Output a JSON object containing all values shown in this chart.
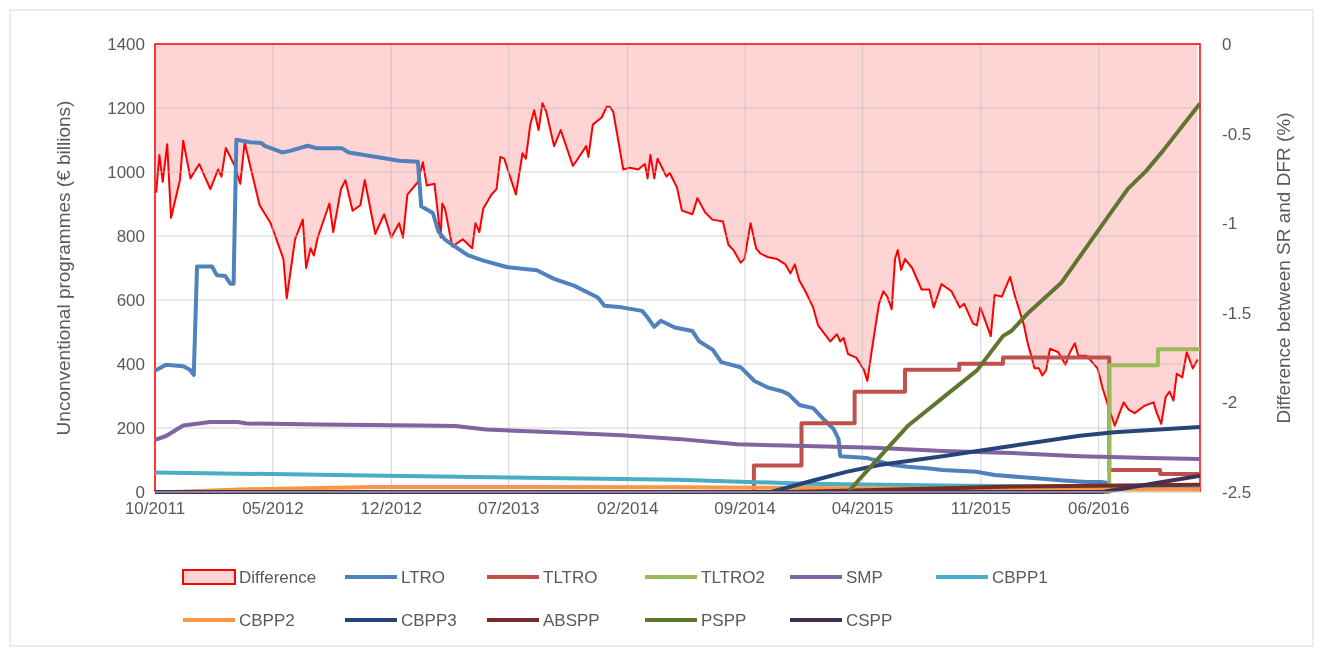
{
  "chart_data": {
    "type": "line",
    "xlabel": null,
    "ylabel": "Unconventional programmes (€ billions)",
    "y2label": "Difference between SR and DFR (%)",
    "xlim": [
      "2011-10-01",
      "2016-12-01"
    ],
    "xticks": [
      {
        "value": "2011-10-01",
        "label": "10/2011"
      },
      {
        "value": "2012-05-01",
        "label": "05/2012"
      },
      {
        "value": "2012-12-01",
        "label": "12/2012"
      },
      {
        "value": "2013-07-01",
        "label": "07/2013"
      },
      {
        "value": "2014-02-01",
        "label": "02/2014"
      },
      {
        "value": "2014-09-01",
        "label": "09/2014"
      },
      {
        "value": "2015-04-01",
        "label": "04/2015"
      },
      {
        "value": "2015-11-01",
        "label": "11/2015"
      },
      {
        "value": "2016-06-01",
        "label": "06/2016"
      }
    ],
    "ylim": [
      0,
      1400
    ],
    "yticks": [
      0,
      200,
      400,
      600,
      800,
      1000,
      1200,
      1400
    ],
    "y2lim": [
      -2.5,
      0
    ],
    "y2ticks": [
      -2.5,
      -2,
      -1.5,
      -1,
      -0.5,
      0
    ],
    "grid": true,
    "legend": "bottom",
    "series": [
      {
        "name": "Difference",
        "type": "area",
        "axis": "y2",
        "color": "#ff0000",
        "x": [
          "2011-10-03",
          "2011-10-09",
          "2011-10-15",
          "2011-10-23",
          "2011-10-30",
          "2011-11-15",
          "2011-11-21",
          "2011-12-04",
          "2011-12-20",
          "2012-01-09",
          "2012-01-23",
          "2012-01-29",
          "2012-02-06",
          "2012-02-22",
          "2012-03-03",
          "2012-03-11",
          "2012-04-07",
          "2012-04-27",
          "2012-05-20",
          "2012-05-26",
          "2012-06-10",
          "2012-06-24",
          "2012-06-30",
          "2012-07-08",
          "2012-07-14",
          "2012-07-21",
          "2012-08-11",
          "2012-08-18",
          "2012-09-01",
          "2012-09-09",
          "2012-09-22",
          "2012-10-06",
          "2012-10-14",
          "2012-11-02",
          "2012-11-18",
          "2012-12-01",
          "2012-12-15",
          "2012-12-22",
          "2012-12-30",
          "2013-01-18",
          "2013-01-27",
          "2013-02-03",
          "2013-02-17",
          "2013-02-28",
          "2013-03-03",
          "2013-03-08",
          "2013-03-21",
          "2013-04-09",
          "2013-04-26",
          "2013-05-02",
          "2013-05-09",
          "2013-05-16",
          "2013-05-31",
          "2013-06-09",
          "2013-06-16",
          "2013-06-23",
          "2013-07-14",
          "2013-07-26",
          "2013-08-01",
          "2013-08-09",
          "2013-08-16",
          "2013-08-24",
          "2013-08-31",
          "2013-09-07",
          "2013-09-21",
          "2013-10-03",
          "2013-10-25",
          "2013-11-01",
          "2013-11-18",
          "2013-11-22",
          "2013-11-30",
          "2013-12-16",
          "2013-12-25",
          "2013-12-31",
          "2014-01-06",
          "2014-01-24",
          "2014-02-05",
          "2014-02-20",
          "2014-03-04",
          "2014-03-09",
          "2014-03-14",
          "2014-03-21",
          "2014-03-27",
          "2014-04-12",
          "2014-04-18",
          "2014-05-01",
          "2014-05-10",
          "2014-05-29",
          "2014-06-07",
          "2014-06-21",
          "2014-07-04",
          "2014-07-23",
          "2014-08-02",
          "2014-08-11",
          "2014-08-24",
          "2014-08-31",
          "2014-09-11",
          "2014-09-21",
          "2014-09-29",
          "2014-10-13",
          "2014-10-29",
          "2014-11-13",
          "2014-11-22",
          "2014-11-30",
          "2014-12-08",
          "2014-12-19",
          "2015-01-02",
          "2015-01-11",
          "2015-02-02",
          "2015-02-14",
          "2015-02-20",
          "2015-02-26",
          "2015-03-06",
          "2015-03-21",
          "2015-04-04",
          "2015-04-10",
          "2015-04-18",
          "2015-05-01",
          "2015-05-09",
          "2015-05-16",
          "2015-05-24",
          "2015-05-30",
          "2015-06-04",
          "2015-06-10",
          "2015-06-17",
          "2015-06-30",
          "2015-07-17",
          "2015-07-31",
          "2015-08-08",
          "2015-08-22",
          "2015-09-09",
          "2015-09-24",
          "2015-10-02",
          "2015-10-18",
          "2015-10-25",
          "2015-10-31",
          "2015-11-05",
          "2015-11-19",
          "2015-11-26",
          "2015-12-09",
          "2015-12-24",
          "2016-01-01",
          "2016-01-18",
          "2016-01-24",
          "2016-02-06",
          "2016-02-14",
          "2016-02-20",
          "2016-02-27",
          "2016-03-05",
          "2016-03-20",
          "2016-04-02",
          "2016-04-10",
          "2016-04-19",
          "2016-04-25",
          "2016-05-10",
          "2016-05-30",
          "2016-06-08",
          "2016-06-19",
          "2016-06-30",
          "2016-07-16",
          "2016-07-25",
          "2016-08-05",
          "2016-08-22",
          "2016-09-08",
          "2016-09-14",
          "2016-09-22",
          "2016-09-30",
          "2016-10-07",
          "2016-10-14",
          "2016-10-20",
          "2016-10-30",
          "2016-11-07",
          "2016-11-18",
          "2016-11-27"
        ],
        "values": [
          -0.83,
          -0.62,
          -0.77,
          -0.56,
          -0.97,
          -0.76,
          -0.54,
          -0.75,
          -0.67,
          -0.81,
          -0.7,
          -0.74,
          -0.58,
          -0.68,
          -0.78,
          -0.55,
          -0.9,
          -1,
          -1.2,
          -1.42,
          -1.09,
          -0.98,
          -1.25,
          -1.14,
          -1.18,
          -1.08,
          -0.89,
          -1.05,
          -0.81,
          -0.76,
          -0.93,
          -0.9,
          -0.76,
          -1.06,
          -0.95,
          -1.08,
          -1,
          -1.08,
          -0.84,
          -0.77,
          -0.66,
          -0.79,
          -0.78,
          -1.08,
          -0.89,
          -0.92,
          -1.13,
          -1.09,
          -1.14,
          -1,
          -1.05,
          -0.92,
          -0.84,
          -0.81,
          -0.63,
          -0.64,
          -0.84,
          -0.61,
          -0.64,
          -0.45,
          -0.37,
          -0.48,
          -0.33,
          -0.38,
          -0.57,
          -0.48,
          -0.68,
          -0.65,
          -0.57,
          -0.63,
          -0.45,
          -0.41,
          -0.35,
          -0.35,
          -0.38,
          -0.7,
          -0.69,
          -0.7,
          -0.67,
          -0.75,
          -0.62,
          -0.75,
          -0.64,
          -0.74,
          -0.72,
          -0.8,
          -0.93,
          -0.95,
          -0.86,
          -0.94,
          -0.98,
          -0.99,
          -1.12,
          -1.15,
          -1.22,
          -1.2,
          -1,
          -1.14,
          -1.17,
          -1.19,
          -1.2,
          -1.23,
          -1.28,
          -1.23,
          -1.32,
          -1.38,
          -1.47,
          -1.57,
          -1.66,
          -1.62,
          -1.66,
          -1.64,
          -1.73,
          -1.75,
          -1.82,
          -1.88,
          -1.71,
          -1.45,
          -1.38,
          -1.41,
          -1.48,
          -1.2,
          -1.15,
          -1.26,
          -1.2,
          -1.25,
          -1.37,
          -1.37,
          -1.47,
          -1.34,
          -1.38,
          -1.47,
          -1.45,
          -1.56,
          -1.57,
          -1.47,
          -1.51,
          -1.63,
          -1.4,
          -1.41,
          -1.3,
          -1.4,
          -1.57,
          -1.66,
          -1.81,
          -1.81,
          -1.85,
          -1.82,
          -1.7,
          -1.72,
          -1.79,
          -1.72,
          -1.67,
          -1.74,
          -1.74,
          -1.81,
          -1.92,
          -2.03,
          -2.13,
          -2,
          -2.04,
          -2.06,
          -2.02,
          -2,
          -2.06,
          -2.12,
          -1.97,
          -1.94,
          -1.99,
          -1.84,
          -1.86,
          -1.72,
          -1.81,
          -1.76
        ]
      },
      {
        "name": "LTRO",
        "color": "#4f81bd",
        "x": [
          "2011-10-01",
          "2011-10-21",
          "2011-11-21",
          "2011-12-03",
          "2011-12-10",
          "2011-12-16",
          "2012-01-12",
          "2012-01-21",
          "2012-02-05",
          "2012-02-14",
          "2012-02-20",
          "2012-02-25",
          "2012-03-21",
          "2012-04-10",
          "2012-04-16",
          "2012-05-18",
          "2012-06-01",
          "2012-07-03",
          "2012-07-20",
          "2012-09-03",
          "2012-09-15",
          "2012-10-21",
          "2012-11-21",
          "2012-12-15",
          "2013-01-18",
          "2013-01-24",
          "2013-02-14",
          "2013-02-24",
          "2013-03-09",
          "2013-04-18",
          "2013-05-15",
          "2013-06-27",
          "2013-08-21",
          "2013-09-21",
          "2013-10-27",
          "2013-12-09",
          "2013-12-21",
          "2014-01-21",
          "2014-02-27",
          "2014-03-09",
          "2014-03-21",
          "2014-04-02",
          "2014-04-27",
          "2014-05-29",
          "2014-06-10",
          "2014-07-05",
          "2014-07-20",
          "2014-08-24",
          "2014-09-18",
          "2014-10-13",
          "2014-11-07",
          "2014-11-19",
          "2014-12-08",
          "2015-01-02",
          "2015-01-20",
          "2015-02-08",
          "2015-02-17",
          "2015-02-20",
          "2015-04-10",
          "2015-05-04",
          "2015-05-23",
          "2015-06-22",
          "2015-07-27",
          "2015-08-24",
          "2015-10-24",
          "2015-11-26",
          "2016-02-15",
          "2016-03-29",
          "2016-05-11",
          "2016-06-05",
          "2016-06-18"
        ],
        "values": [
          379,
          398,
          393,
          382,
          366,
          705,
          705,
          677,
          675,
          651,
          651,
          1101,
          1093,
          1091,
          1082,
          1061,
          1066,
          1082,
          1074,
          1074,
          1061,
          1051,
          1042,
          1035,
          1032,
          893,
          872,
          814,
          787,
          740,
          724,
          703,
          693,
          666,
          645,
          608,
          582,
          577,
          566,
          545,
          516,
          535,
          514,
          503,
          471,
          444,
          406,
          390,
          347,
          326,
          315,
          305,
          272,
          262,
          229,
          197,
          165,
          112,
          106,
          95,
          85,
          79,
          74,
          69,
          63,
          53,
          42,
          36,
          31,
          31,
          28
        ]
      },
      {
        "name": "TLTRO",
        "type": "step",
        "color": "#c0504d",
        "x": [
          "2014-09-12",
          "2014-09-17",
          "2014-12-12",
          "2015-03-18",
          "2015-06-17",
          "2015-09-23",
          "2015-12-11",
          "2016-06-20",
          "2016-09-20",
          "2016-12-01"
        ],
        "values": [
          0,
          83,
          215,
          313,
          382,
          401,
          420,
          69,
          56,
          56
        ]
      },
      {
        "name": "TLTRO2",
        "type": "step",
        "color": "#9bbb59",
        "x": [
          "2016-06-15",
          "2016-06-20",
          "2016-09-16",
          "2016-12-01"
        ],
        "values": [
          0,
          396,
          446,
          446
        ]
      },
      {
        "name": "SMP",
        "color": "#8064a2",
        "x": [
          "2011-10-01",
          "2011-10-21",
          "2011-11-21",
          "2012-01-09",
          "2012-02-27",
          "2012-03-15",
          "2012-07-21",
          "2013-01-21",
          "2013-03-27",
          "2013-05-21",
          "2013-09-21",
          "2014-01-21",
          "2014-05-02",
          "2014-08-18",
          "2014-12-20",
          "2015-04-22",
          "2015-08-24",
          "2015-12-27",
          "2016-04-28",
          "2016-09-01",
          "2016-12-01"
        ],
        "values": [
          163,
          175,
          208,
          219,
          219,
          214,
          211,
          208,
          206,
          195,
          187,
          177,
          166,
          149,
          144,
          138,
          128,
          122,
          112,
          106,
          103
        ]
      },
      {
        "name": "CBPP1",
        "color": "#4bacc6",
        "x": [
          "2011-10-01",
          "2012-11-21",
          "2014-05-02",
          "2014-12-20",
          "2015-08-24",
          "2016-06-01",
          "2016-12-01"
        ],
        "values": [
          61,
          51,
          38,
          26,
          20,
          15,
          10
        ]
      },
      {
        "name": "CBPP2",
        "color": "#f79646",
        "x": [
          "2011-11-01",
          "2012-03-01",
          "2012-11-01",
          "2014-05-01",
          "2015-06-01",
          "2016-12-01"
        ],
        "values": [
          0,
          8,
          16,
          15,
          11,
          7
        ]
      },
      {
        "name": "CBPP3",
        "color": "#264478",
        "x": [
          "2014-10-18",
          "2015-01-02",
          "2015-03-03",
          "2015-05-04",
          "2015-08-24",
          "2015-12-26",
          "2016-04-28",
          "2016-06-29",
          "2016-12-01"
        ],
        "values": [
          0,
          36,
          63,
          85,
          112,
          144,
          176,
          187,
          203
        ]
      },
      {
        "name": "ABSPP",
        "color": "#772c2a",
        "x": [
          "2014-11-21",
          "2015-06-01",
          "2016-01-01",
          "2016-12-01"
        ],
        "values": [
          0,
          8,
          17,
          23
        ]
      },
      {
        "name": "PSPP",
        "color": "#5f7530",
        "x": [
          "2015-03-06",
          "2015-04-22",
          "2015-06-23",
          "2015-08-24",
          "2015-10-25",
          "2015-12-11",
          "2015-12-26",
          "2016-01-27",
          "2016-03-25",
          "2016-06-23",
          "2016-07-24",
          "2016-08-25",
          "2016-09-25",
          "2016-12-01"
        ],
        "values": [
          0,
          90,
          208,
          294,
          380,
          487,
          503,
          562,
          653,
          873,
          948,
          1002,
          1066,
          1214
        ]
      },
      {
        "name": "CSPP",
        "color": "#403152",
        "x": [
          "2011-10-01",
          "2016-06-08",
          "2016-12-01"
        ],
        "values": [
          0,
          0,
          51
        ]
      }
    ]
  }
}
